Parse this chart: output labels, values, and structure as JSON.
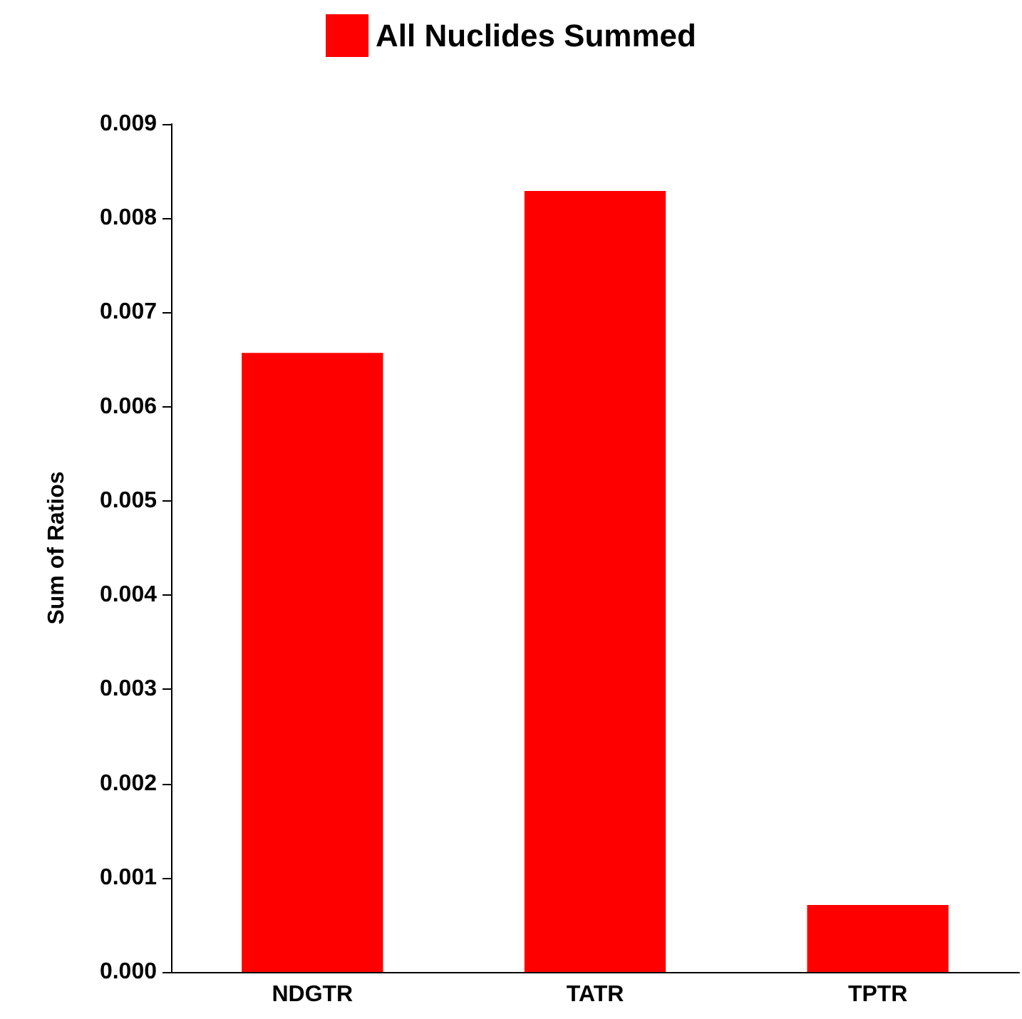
{
  "chart_data": {
    "type": "bar",
    "ylabel": "Sum of Ratios",
    "categories": [
      "NDGTR",
      "TATR",
      "TPTR"
    ],
    "series": [
      {
        "name": "All Nuclides Summed",
        "color": "#ff0000",
        "values": [
          0.00657,
          0.00829,
          0.00071
        ]
      }
    ],
    "ylim": [
      0,
      0.009
    ],
    "yticks": [
      {
        "value": 0,
        "label": "0.000"
      },
      {
        "value": 0.001,
        "label": "0.001"
      },
      {
        "value": 0.002,
        "label": "0.002"
      },
      {
        "value": 0.003,
        "label": "0.003"
      },
      {
        "value": 0.004,
        "label": "0.004"
      },
      {
        "value": 0.005,
        "label": "0.005"
      },
      {
        "value": 0.006,
        "label": "0.006"
      },
      {
        "value": 0.007,
        "label": "0.007"
      },
      {
        "value": 0.008,
        "label": "0.008"
      },
      {
        "value": 0.009,
        "label": "0.009"
      }
    ],
    "grid": false,
    "legend": "top"
  }
}
